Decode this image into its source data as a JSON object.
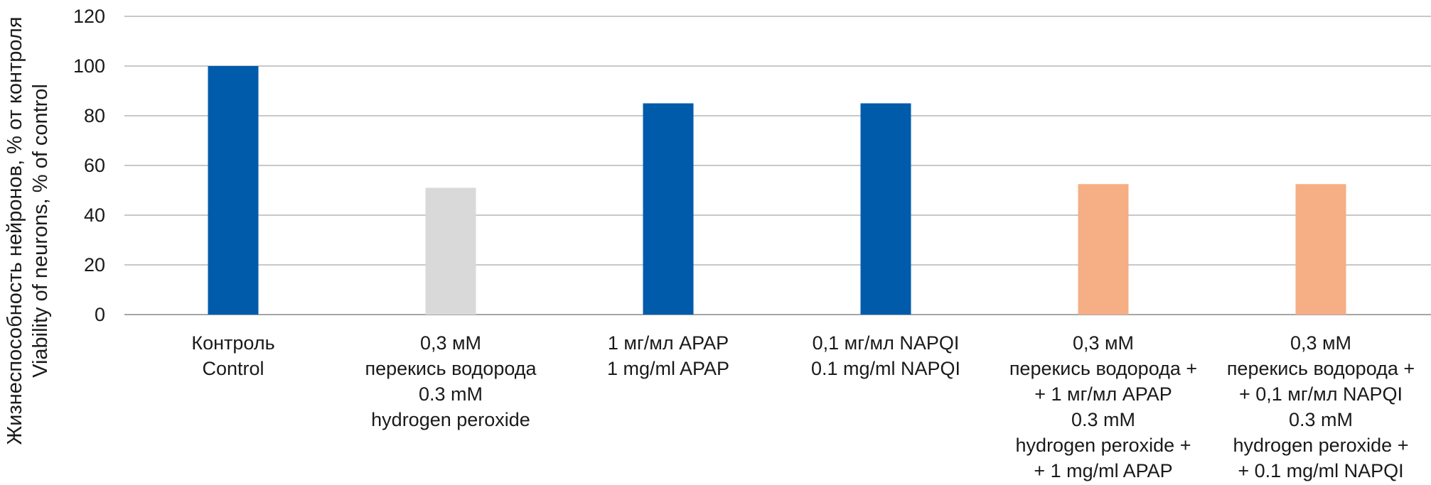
{
  "chart_data": {
    "type": "bar",
    "ylabel_lines": [
      "Жизнеспособность нейронов, % от контроля",
      "Viability of neurons, % of control"
    ],
    "xlabel": "",
    "ylim": [
      0,
      120
    ],
    "yticks": [
      0,
      20,
      40,
      60,
      80,
      100,
      120
    ],
    "grid": true,
    "legend": "none",
    "categories": [
      {
        "lines": [
          "Контроль",
          "Control"
        ],
        "value": 100,
        "color": "#005bab"
      },
      {
        "lines": [
          "0,3 мМ",
          "перекись водорода",
          "0.3 mM",
          "hydrogen peroxide"
        ],
        "value": 51,
        "color": "#d9d9d9"
      },
      {
        "lines": [
          "1 мг/мл APAP",
          "1 mg/ml APAP"
        ],
        "value": 85,
        "color": "#005bab"
      },
      {
        "lines": [
          "0,1 мг/мл NAPQI",
          "0.1 mg/ml NAPQI"
        ],
        "value": 85,
        "color": "#005bab"
      },
      {
        "lines": [
          "0,3 мМ",
          "перекись водорода +",
          "+ 1 мг/мл APAP",
          "0.3 mM",
          "hydrogen peroxide +",
          "+ 1 mg/ml APAP"
        ],
        "value": 52.5,
        "color": "#f6ae84"
      },
      {
        "lines": [
          "0,3 мМ",
          "перекись водорода +",
          "+ 0,1 мг/мл NAPQI",
          "0.3 mM",
          "hydrogen peroxide +",
          "+ 0.1 mg/ml NAPQI"
        ],
        "value": 52.5,
        "color": "#f6ae84"
      }
    ],
    "colors": {
      "grid": "#c8c8c8",
      "axis": "#a6a6a6"
    }
  }
}
